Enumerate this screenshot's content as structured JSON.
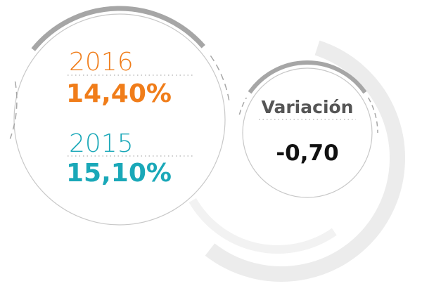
{
  "items": [
    {
      "year": "2016",
      "value": "14,40%"
    },
    {
      "year": "2015",
      "value": "15,10%"
    }
  ],
  "variation": {
    "label": "Variación",
    "value": "-0,70"
  }
}
